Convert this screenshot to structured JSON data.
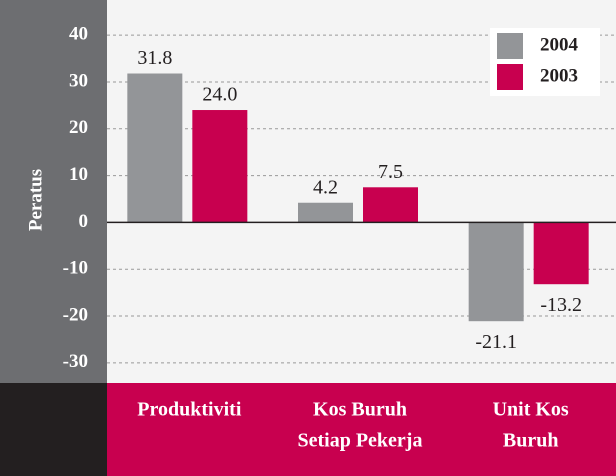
{
  "chart_data": {
    "type": "bar",
    "y_label": "Peratus",
    "categories": [
      [
        "Produktiviti"
      ],
      [
        "Kos Buruh",
        "Setiap Pekerja"
      ],
      [
        "Unit Kos",
        "Buruh"
      ]
    ],
    "series": [
      {
        "name": "2004",
        "color": "#939598",
        "values": [
          31.8,
          4.2,
          -21.1
        ]
      },
      {
        "name": "2003",
        "color": "#c8004f",
        "values": [
          24.0,
          7.5,
          -13.2
        ]
      }
    ],
    "value_labels": [
      [
        "31.8",
        "4.2",
        "-21.1"
      ],
      [
        "24.0",
        "7.5",
        "-13.2"
      ]
    ],
    "ylim": [
      -34.3,
      47.5
    ],
    "yticks": [
      -30,
      -20,
      -10,
      0,
      10,
      20,
      30,
      40
    ],
    "grid": true,
    "legend": "top-right"
  }
}
